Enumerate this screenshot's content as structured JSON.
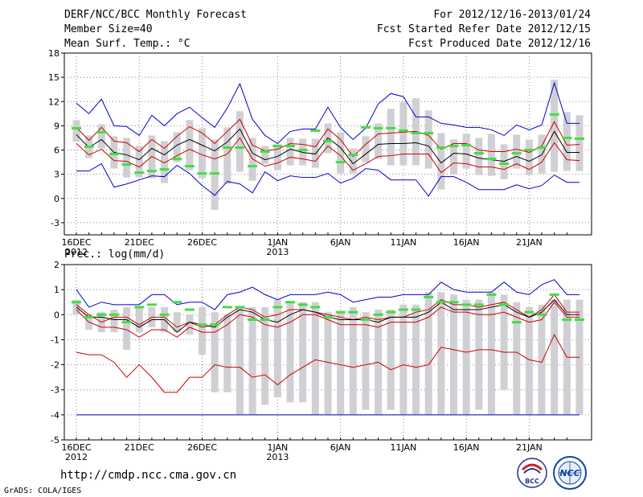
{
  "header": {
    "title": "DERF/NCC/BCC Monthly Forecast",
    "member_size": "Member Size=40",
    "variable": "Mean Surf. Temp.: °C",
    "period": "For 2012/12/16-2013/01/24",
    "fcst_started": "Fcst Started Refer Date 2012/12/15",
    "fcst_produced": "Fcst Produced Date 2012/12/16"
  },
  "footer": {
    "url": "http://cmdp.ncc.cma.gov.cn",
    "grads": "GrADS: COLA/IGES",
    "logo_bcc": "BCC",
    "logo_ncc": "NCC"
  },
  "colors": {
    "max_min": "#0000cc",
    "spread": "#cc0000",
    "mean": "#000000",
    "box": "#d0d0d4",
    "observed": "#44dd44",
    "grid": "#888888"
  },
  "chart_data": [
    {
      "type": "line",
      "id": "temperature",
      "title": "Mean Surf. Temp.: °C",
      "ylabel": "°C",
      "ylim": [
        -4.5,
        18
      ],
      "yticks": [
        -3,
        0,
        3,
        6,
        9,
        12,
        15,
        18
      ],
      "x_days": 40,
      "xtick_labels": [
        {
          "day": 0,
          "label": "16DEC",
          "sub": "2012"
        },
        {
          "day": 5,
          "label": "21DEC",
          "sub": ""
        },
        {
          "day": 10,
          "label": "26DEC",
          "sub": ""
        },
        {
          "day": 16,
          "label": "1JAN",
          "sub": "2013"
        },
        {
          "day": 21,
          "label": "6JAN",
          "sub": ""
        },
        {
          "day": 26,
          "label": "11JAN",
          "sub": ""
        },
        {
          "day": 31,
          "label": "16JAN",
          "sub": ""
        },
        {
          "day": 36,
          "label": "21JAN",
          "sub": ""
        }
      ],
      "series": [
        {
          "name": "ensemble max",
          "role": "max",
          "values": [
            11.8,
            10.5,
            12.3,
            9,
            8.9,
            7.8,
            10.3,
            9,
            10.5,
            11.3,
            10,
            8.8,
            11.2,
            14.2,
            9.8,
            7.8,
            6.8,
            8.3,
            8.6,
            8.6,
            11.3,
            8.8,
            7.3,
            8.7,
            11.7,
            13,
            12.6,
            10.1,
            10.1,
            9.3,
            9.1,
            8.8,
            8.8,
            8.5,
            7.8,
            9.1,
            8.5,
            9.1,
            14.3,
            9.3,
            9.3
          ]
        },
        {
          "name": "mean + spread",
          "role": "upper",
          "values": [
            8.8,
            7.2,
            8.8,
            7.1,
            6.9,
            5.8,
            7.3,
            6.2,
            7.7,
            8.9,
            8.1,
            6.8,
            8.3,
            9.8,
            6.6,
            5.9,
            6.1,
            6.8,
            6.7,
            6.4,
            8.6,
            7.3,
            5.2,
            6.7,
            8,
            8.1,
            8.2,
            8.3,
            7.8,
            6.1,
            6.8,
            6.8,
            6,
            5.8,
            5.8,
            6.1,
            5.7,
            6.5,
            9.5,
            6.6,
            6.7
          ]
        },
        {
          "name": "ensemble mean",
          "role": "mean",
          "values": [
            7.9,
            6.3,
            7.3,
            5.7,
            5.4,
            4.8,
            6.2,
            5.4,
            6.6,
            7.3,
            6.6,
            5.9,
            7,
            8.6,
            5.6,
            4.8,
            5.2,
            6.1,
            5.7,
            5.5,
            7.5,
            6.3,
            4.3,
            5.5,
            6.7,
            6.8,
            6.8,
            6.9,
            6.5,
            4.4,
            5.6,
            5.5,
            5,
            4.8,
            4.6,
            5.2,
            4.6,
            5.4,
            8.3,
            5.7,
            5.7
          ]
        },
        {
          "name": "mean - spread",
          "role": "lower",
          "values": [
            6.8,
            5.4,
            6.1,
            4.7,
            4.6,
            3.9,
            5.2,
            4.4,
            5.3,
            6.1,
            5.4,
            4.9,
            5.5,
            7.5,
            4.9,
            4,
            4.4,
            5.1,
            4.9,
            4.6,
            6.5,
            5.3,
            3.5,
            4.3,
            5.2,
            5.3,
            5.5,
            5.5,
            5.5,
            3.2,
            4.4,
            4.3,
            3.9,
            3.9,
            3.6,
            4.3,
            3.6,
            4.5,
            6.9,
            4.8,
            4.7
          ]
        },
        {
          "name": "ensemble min",
          "role": "min",
          "values": [
            3.4,
            3.4,
            4.3,
            1.4,
            1.8,
            2.3,
            2.8,
            2.7,
            4.1,
            3.1,
            1.6,
            0.4,
            2.1,
            1.8,
            0.7,
            3.3,
            2.2,
            2.8,
            2.6,
            2.6,
            3.1,
            1.9,
            2.5,
            3.7,
            3.5,
            2.3,
            2.3,
            2.3,
            0.3,
            2.7,
            2.7,
            2,
            1.1,
            1.1,
            1.1,
            1.7,
            1.2,
            1.6,
            2.9,
            2,
            2
          ]
        },
        {
          "name": "observed",
          "role": "observed",
          "values": [
            8.7,
            6.4,
            8.2,
            5.5,
            4.2,
            3.2,
            3.4,
            3.6,
            4.9,
            4,
            3.1,
            3.1,
            6.3,
            6.3,
            4,
            5.8,
            6.5,
            6.5,
            6,
            8.4,
            7.1,
            4.5,
            5.4,
            8.8,
            8.7,
            8.7,
            8.4,
            8.1,
            8.1,
            6.3,
            6.5,
            6.6,
            5.6,
            4.9,
            4.3,
            5.6,
            6,
            6.3,
            10.4,
            7.5,
            7.4
          ]
        },
        {
          "name": "box upper",
          "role": "box_hi",
          "values": [
            9.7,
            7.8,
            9.2,
            7.7,
            7.5,
            6.5,
            7.8,
            7.1,
            8.2,
            9.7,
            8.7,
            7.3,
            8.8,
            10.8,
            7.5,
            6.5,
            6.7,
            7.5,
            7.4,
            7.4,
            9.3,
            8.2,
            6.2,
            7.7,
            9.3,
            11.1,
            11.9,
            12.4,
            10.9,
            8.1,
            7.3,
            8,
            7.5,
            8,
            6.7,
            7.9,
            7.3,
            7.9,
            14.7,
            10.7,
            10.3
          ]
        },
        {
          "name": "box lower",
          "role": "box_lo",
          "values": [
            7,
            5,
            6.2,
            3.7,
            2.6,
            2.6,
            2.5,
            1.9,
            4.5,
            3.5,
            2.5,
            -1.4,
            1.8,
            3.3,
            2.2,
            4.3,
            3.5,
            4.1,
            4.1,
            3.8,
            5.6,
            3.1,
            3.1,
            4.5,
            4.9,
            4.1,
            4.1,
            4.1,
            3.7,
            1.1,
            3,
            3.7,
            2.9,
            2.8,
            2.4,
            3.7,
            2.9,
            3.1,
            3.3,
            3.4,
            3.4
          ]
        }
      ]
    },
    {
      "type": "line",
      "id": "precipitation",
      "title": "Prec.: log(mm/d)",
      "ylabel": "log(mm/d)",
      "ylim": [
        -5,
        2
      ],
      "yticks": [
        -5,
        -4,
        -3,
        -2,
        -1,
        0,
        1,
        2
      ],
      "x_days": 40,
      "xtick_labels": [
        {
          "day": 0,
          "label": "16DEC",
          "sub": "2012"
        },
        {
          "day": 5,
          "label": "21DEC",
          "sub": ""
        },
        {
          "day": 10,
          "label": "26DEC",
          "sub": ""
        },
        {
          "day": 16,
          "label": "1JAN",
          "sub": "2013"
        },
        {
          "day": 21,
          "label": "6JAN",
          "sub": ""
        },
        {
          "day": 26,
          "label": "11JAN",
          "sub": ""
        },
        {
          "day": 31,
          "label": "16JAN",
          "sub": ""
        },
        {
          "day": 36,
          "label": "21JAN",
          "sub": ""
        }
      ],
      "series": [
        {
          "name": "ensemble max",
          "role": "max",
          "values": [
            1,
            0.3,
            0.5,
            0.4,
            0.4,
            0.4,
            0.8,
            0.8,
            0.4,
            0.5,
            0.5,
            0.2,
            0.8,
            0.9,
            1.1,
            0.8,
            0.6,
            0.8,
            0.8,
            0.8,
            0.9,
            0.8,
            0.5,
            0.6,
            0.7,
            0.7,
            0.8,
            0.8,
            0.8,
            1.3,
            1,
            0.9,
            0.9,
            0.9,
            1.3,
            0.9,
            0.8,
            1.2,
            1.4,
            0.8,
            0.8
          ]
        },
        {
          "name": "mean + spread",
          "role": "upper",
          "values": [
            0.4,
            0,
            -0.3,
            -0.1,
            -0.1,
            -0.4,
            -0.1,
            -0.1,
            -0.5,
            -0.3,
            -0.5,
            -0.4,
            0,
            0.3,
            0.2,
            -0.1,
            0,
            0.2,
            0.2,
            0.1,
            0,
            -0.1,
            -0.2,
            -0.1,
            -0.2,
            -0.1,
            -0.1,
            0.1,
            0.2,
            0.6,
            0.4,
            0.4,
            0.3,
            0.4,
            0.5,
            0.2,
            -0.1,
            0.2,
            0.8,
            0.1,
            0.1
          ]
        },
        {
          "name": "ensemble mean",
          "role": "mean",
          "values": [
            0.3,
            -0.1,
            -0.1,
            -0.2,
            -0.2,
            -0.5,
            -0.2,
            -0.2,
            -0.7,
            -0.3,
            -0.4,
            -0.5,
            -0.1,
            0.2,
            0.1,
            -0.2,
            -0.3,
            0,
            0.2,
            0.1,
            -0.1,
            -0.2,
            -0.2,
            -0.2,
            -0.3,
            -0.1,
            -0.1,
            -0.1,
            0.1,
            0.5,
            0.2,
            0.2,
            0.2,
            0.3,
            0.4,
            0.1,
            -0.1,
            0.1,
            0.6,
            0,
            0
          ]
        },
        {
          "name": "mean - spread",
          "role": "lower",
          "values": [
            0.2,
            -0.3,
            -0.5,
            -0.5,
            -0.6,
            -0.9,
            -0.6,
            -0.6,
            -0.9,
            -0.5,
            -0.7,
            -0.7,
            -0.4,
            0,
            -0.1,
            -0.4,
            -0.5,
            -0.3,
            0,
            0,
            -0.2,
            -0.4,
            -0.4,
            -0.4,
            -0.5,
            -0.3,
            -0.3,
            -0.3,
            -0.1,
            0.3,
            0.1,
            0.1,
            0,
            0,
            0.1,
            -0.1,
            -0.3,
            -0.2,
            0.5,
            -0.1,
            -0.1
          ]
        },
        {
          "name": "ensemble min",
          "role": "min",
          "values": [
            -1.5,
            -1.6,
            -1.6,
            -1.9,
            -2.5,
            -2,
            -2.5,
            -3.1,
            -3.1,
            -2.5,
            -2.5,
            -2,
            -2.1,
            -2.1,
            -2.5,
            -2.4,
            -2.8,
            -2.4,
            -2.1,
            -1.8,
            -1.9,
            -2,
            -2.1,
            -2,
            -1.9,
            -2.2,
            -2,
            -2.1,
            -2,
            -1.3,
            -1.4,
            -1.5,
            -1.4,
            -1.4,
            -1.5,
            -1.5,
            -1.8,
            -1.9,
            -0.8,
            -1.7,
            -1.7
          ]
        },
        {
          "name": "observed",
          "role": "observed",
          "values": [
            0.5,
            -0.1,
            0,
            0,
            -0.3,
            0.3,
            0.4,
            0,
            0.5,
            0.2,
            -0.4,
            -0.4,
            0.3,
            0.3,
            -0.2,
            -0.2,
            0.3,
            0.5,
            0.4,
            0.3,
            -0.1,
            0.1,
            0.1,
            -0.2,
            0,
            0.1,
            0.2,
            0.2,
            0.7,
            0.5,
            0.5,
            0.4,
            0.4,
            0.8,
            0.4,
            -0.3,
            0.1,
            0,
            0.8,
            -0.2,
            -0.2
          ]
        },
        {
          "name": "box upper",
          "role": "box_hi",
          "values": [
            0.6,
            0,
            0.1,
            0.2,
            0.3,
            0.3,
            0.3,
            0.3,
            0.1,
            0,
            0.3,
            0.1,
            0,
            0.3,
            0.3,
            0.3,
            0.6,
            0.5,
            0.5,
            0.5,
            0.1,
            0.1,
            0.3,
            0.1,
            0.2,
            0.2,
            0.4,
            0.4,
            0.9,
            0.9,
            0.8,
            0.6,
            0.6,
            0.9,
            0.8,
            0.5,
            0.3,
            0.4,
            0.6,
            0.6,
            0.6
          ]
        },
        {
          "name": "box lower",
          "role": "box_lo",
          "values": [
            0,
            -0.6,
            -0.7,
            -0.7,
            -1.4,
            -0.7,
            -0.5,
            -0.7,
            -0.7,
            -0.8,
            -1.6,
            -3.1,
            -3.1,
            -4,
            -4,
            -3.6,
            -3.3,
            -3.5,
            -3.5,
            -4,
            -4,
            -4,
            -4,
            -3.8,
            -4,
            -3.8,
            -4,
            -4,
            -4,
            -4,
            -4,
            -4,
            -3.8,
            -4,
            -3,
            -4,
            -4,
            -4,
            -4,
            -4,
            -4
          ]
        },
        {
          "name": "floor",
          "role": "floor",
          "values": [
            -4,
            -4,
            -4,
            -4,
            -4,
            -4,
            -4,
            -4,
            -4,
            -4,
            -4,
            -4,
            -4,
            -4,
            -4,
            -4,
            -4,
            -4,
            -4,
            -4,
            -4,
            -4,
            -4,
            -4,
            -4,
            -4,
            -4,
            -4,
            -4,
            -4,
            -4,
            -4,
            -4,
            -4,
            -4,
            -4,
            -4,
            -4,
            -4,
            -4,
            -4
          ]
        }
      ]
    }
  ]
}
